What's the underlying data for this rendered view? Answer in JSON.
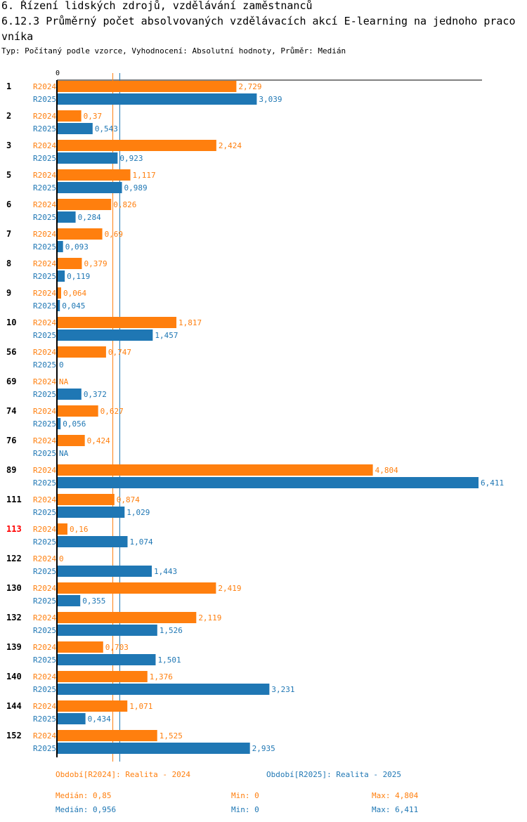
{
  "header": {
    "section_title": "6. Řízení lidských zdrojů, vzdělávání zaměstnanců",
    "chart_title": "6.12.3 Průměrný počet absolvovaných vzdělávacích akcí E-learning na jednoho pracovníka",
    "subtitle": "Typ: Počítaný podle vzorce, Vyhodnocení: Absolutní hodnoty, Průměr: Medián"
  },
  "colors": {
    "r2024": "#ff7f0e",
    "r2025": "#1f77b4",
    "highlight": "#ff0000",
    "axis": "#000000"
  },
  "chart_data": {
    "type": "bar",
    "orientation": "horizontal",
    "axis_zero_label": "0",
    "xlim": [
      0,
      6.411
    ],
    "categories": [
      "1",
      "2",
      "3",
      "5",
      "6",
      "7",
      "8",
      "9",
      "10",
      "56",
      "69",
      "74",
      "76",
      "89",
      "111",
      "113",
      "122",
      "130",
      "132",
      "139",
      "140",
      "144",
      "152"
    ],
    "highlighted_category": "113",
    "series": [
      {
        "name": "R2024",
        "values": [
          2.729,
          0.37,
          2.424,
          1.117,
          0.826,
          0.69,
          0.379,
          0.064,
          1.817,
          0.747,
          null,
          0.627,
          0.424,
          4.804,
          0.874,
          0.16,
          0,
          2.419,
          2.119,
          0.703,
          1.376,
          1.071,
          1.525
        ],
        "labels": [
          "2,729",
          "0,37",
          "2,424",
          "1,117",
          "0,826",
          "0,69",
          "0,379",
          "0,064",
          "1,817",
          "0,747",
          "NA",
          "0,627",
          "0,424",
          "4,804",
          "0,874",
          "0,16",
          "0",
          "2,419",
          "2,119",
          "0,703",
          "1,376",
          "1,071",
          "1,525"
        ],
        "median": 0.85
      },
      {
        "name": "R2025",
        "values": [
          3.039,
          0.543,
          0.923,
          0.989,
          0.284,
          0.093,
          0.119,
          0.045,
          1.457,
          0,
          0.372,
          0.056,
          null,
          6.411,
          1.029,
          1.074,
          1.443,
          0.355,
          1.526,
          1.501,
          3.231,
          0.434,
          2.935
        ],
        "labels": [
          "3,039",
          "0,543",
          "0,923",
          "0,989",
          "0,284",
          "0,093",
          "0,119",
          "0,045",
          "1,457",
          "0",
          "0,372",
          "0,056",
          "NA",
          "6,411",
          "1,029",
          "1,074",
          "1,443",
          "0,355",
          "1,526",
          "1,501",
          "3,231",
          "0,434",
          "2,935"
        ],
        "median": 0.956
      }
    ]
  },
  "legend": {
    "r2024": "Období[R2024]: Realita - 2024",
    "r2025": "Období[R2025]: Realita - 2025"
  },
  "stats": {
    "r2024": {
      "median": "Medián: 0,85",
      "min": "Min: 0",
      "max": "Max: 4,804"
    },
    "r2025": {
      "median": "Medián: 0,956",
      "min": "Min: 0",
      "max": "Max: 6,411"
    }
  }
}
